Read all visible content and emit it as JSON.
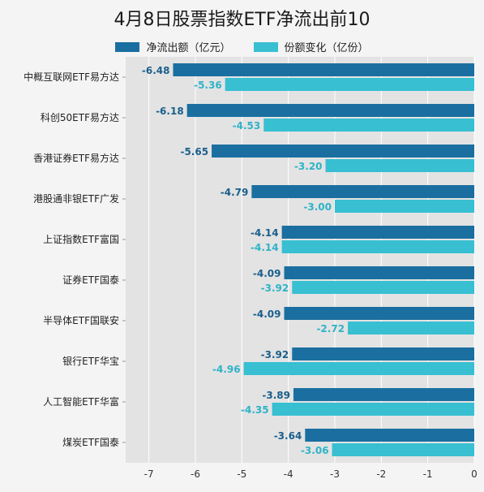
{
  "chart_data": {
    "type": "bar",
    "orientation": "horizontal",
    "title": "4月8日股票指数ETF净流出前10",
    "categories": [
      "中概互联网ETF易方达",
      "科创50ETF易方达",
      "香港证券ETF易方达",
      "港股通非银ETF广发",
      "上证指数ETF富国",
      "证券ETF国泰",
      "半导体ETF国联安",
      "银行ETF华宝",
      "人工智能ETF华富",
      "煤炭ETF国泰"
    ],
    "series": [
      {
        "name": "净流出额（亿元）",
        "color": "#1a6fa0",
        "label_color": "#1a5f8c",
        "values": [
          -6.48,
          -6.18,
          -5.65,
          -4.79,
          -4.14,
          -4.09,
          -4.09,
          -3.92,
          -3.89,
          -3.64
        ]
      },
      {
        "name": "份额变化（亿份）",
        "color": "#38bfd2",
        "label_color": "#2eb3c8",
        "values": [
          -5.36,
          -4.53,
          -3.2,
          -3.0,
          -4.14,
          -3.92,
          -2.72,
          -4.96,
          -4.35,
          -3.06
        ]
      }
    ],
    "xlim": [
      -7.5,
      0
    ],
    "xticks": [
      -7,
      -6,
      -5,
      -4,
      -3,
      -2,
      -1,
      0
    ],
    "legend_position": "top",
    "grid": true
  }
}
